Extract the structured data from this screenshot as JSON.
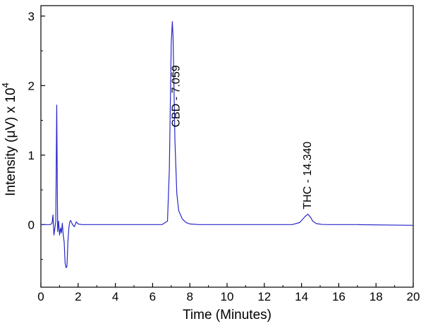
{
  "chart_data": {
    "type": "line",
    "title": "",
    "xlabel": "Time (Minutes)",
    "ylabel_main": "Intensity (μV) x 10",
    "ylabel_exp": "4",
    "xlim": [
      0,
      20
    ],
    "ylim": [
      -0.9,
      3.15
    ],
    "x_ticks": [
      0,
      2,
      4,
      6,
      8,
      10,
      12,
      14,
      16,
      18,
      20
    ],
    "y_ticks": [
      0,
      1,
      2,
      3
    ],
    "grid": false,
    "line_color": "#2828c8",
    "series": [
      {
        "x": [
          0,
          0.5,
          0.6,
          0.65,
          0.7,
          0.75,
          0.8,
          0.85,
          0.9,
          0.95,
          1.0,
          1.05,
          1.1,
          1.15,
          1.2,
          1.25,
          1.3,
          1.35,
          1.4,
          1.45,
          1.5,
          1.55,
          1.6,
          1.7,
          1.8,
          1.9,
          2.0,
          2.2,
          3,
          4,
          5,
          6,
          6.5,
          6.8,
          6.9,
          7.0,
          7.059,
          7.1,
          7.2,
          7.3,
          7.4,
          7.6,
          7.8,
          8.0,
          8.5,
          10,
          12,
          13.5,
          13.9,
          14.1,
          14.2,
          14.34,
          14.5,
          14.6,
          14.8,
          15.1,
          15.5,
          17,
          20
        ],
        "y": [
          0,
          0,
          0.02,
          0.14,
          -0.15,
          -0.05,
          0.05,
          1.72,
          -0.1,
          0.05,
          -0.15,
          -0.05,
          -0.12,
          0.02,
          -0.15,
          -0.25,
          -0.55,
          -0.62,
          -0.6,
          -0.25,
          -0.05,
          0.04,
          0.06,
          0.0,
          -0.03,
          0.04,
          0.01,
          0.0,
          0,
          0,
          0,
          0,
          0,
          0.05,
          0.8,
          2.6,
          2.92,
          2.7,
          1.2,
          0.45,
          0.2,
          0.08,
          0.03,
          0.01,
          0.0,
          0,
          0,
          0.0,
          0.03,
          0.09,
          0.12,
          0.15,
          0.1,
          0.05,
          0.015,
          0.003,
          0.0,
          0,
          -0.01
        ]
      }
    ],
    "annotations": [
      {
        "text": "CBD - 7.059",
        "x": 7.45,
        "y": 1.4
      },
      {
        "text": "THC - 14.340",
        "x": 14.5,
        "y": 0.22
      }
    ]
  }
}
